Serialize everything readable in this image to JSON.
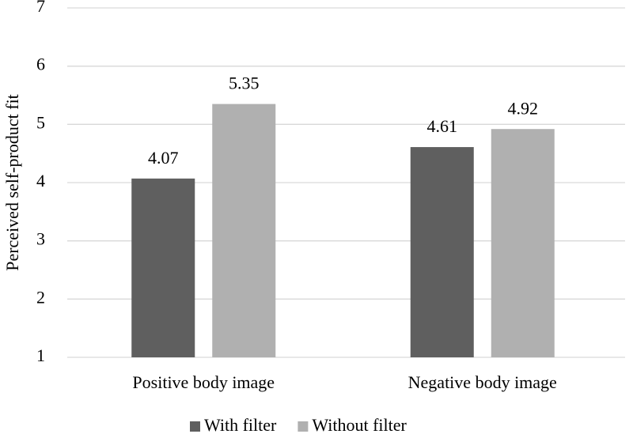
{
  "chart_data": {
    "type": "bar",
    "y_label": "Perceived self-product fit",
    "categories": [
      "Positive body image",
      "Negative body image"
    ],
    "series": [
      {
        "name": "With filter",
        "color": "#5f5f5f",
        "values": [
          4.07,
          4.61
        ]
      },
      {
        "name": "Without filter",
        "color": "#b0b0b0",
        "values": [
          5.35,
          4.92
        ]
      }
    ],
    "ylim": [
      1,
      7
    ],
    "yticks": [
      1,
      2,
      3,
      4,
      5,
      6,
      7
    ],
    "grid": true,
    "legend": "bottom"
  }
}
